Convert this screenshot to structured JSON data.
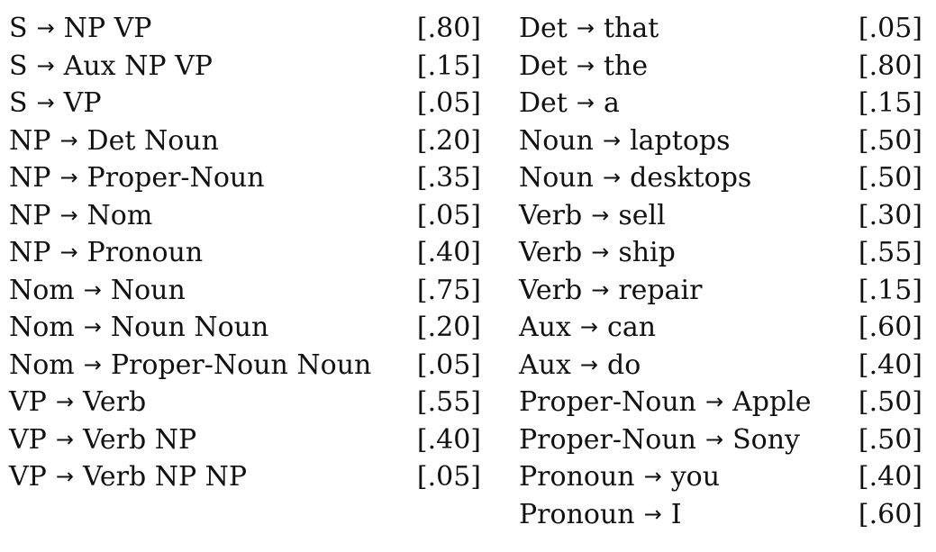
{
  "grammar": {
    "arrow_symbol": "→",
    "left_rules": [
      {
        "lhs": "S",
        "rhs": "NP VP",
        "prob": "[.80]"
      },
      {
        "lhs": "S",
        "rhs": "Aux NP VP",
        "prob": "[.15]"
      },
      {
        "lhs": "S",
        "rhs": "VP",
        "prob": "[.05]"
      },
      {
        "lhs": "NP",
        "rhs": "Det Noun",
        "prob": "[.20]"
      },
      {
        "lhs": "NP",
        "rhs": "Proper-Noun",
        "prob": "[.35]"
      },
      {
        "lhs": "NP",
        "rhs": "Nom",
        "prob": "[.05]"
      },
      {
        "lhs": "NP",
        "rhs": "Pronoun",
        "prob": "[.40]"
      },
      {
        "lhs": "Nom",
        "rhs": "Noun",
        "prob": "[.75]"
      },
      {
        "lhs": "Nom",
        "rhs": "Noun Noun",
        "prob": "[.20]"
      },
      {
        "lhs": "Nom",
        "rhs": "Proper-Noun Noun",
        "prob": "[.05]"
      },
      {
        "lhs": "VP",
        "rhs": "Verb",
        "prob": "[.55]"
      },
      {
        "lhs": "VP",
        "rhs": "Verb NP",
        "prob": "[.40]"
      },
      {
        "lhs": "VP",
        "rhs": "Verb NP NP",
        "prob": "[.05]"
      }
    ],
    "right_rules": [
      {
        "lhs": "Det",
        "rhs": "that",
        "prob": "[.05]"
      },
      {
        "lhs": "Det",
        "rhs": "the",
        "prob": "[.80]"
      },
      {
        "lhs": "Det",
        "rhs": "a",
        "prob": "[.15]"
      },
      {
        "lhs": "Noun",
        "rhs": "laptops",
        "prob": "[.50]"
      },
      {
        "lhs": "Noun",
        "rhs": "desktops",
        "prob": "[.50]"
      },
      {
        "lhs": "Verb",
        "rhs": "sell",
        "prob": "[.30]"
      },
      {
        "lhs": "Verb",
        "rhs": "ship",
        "prob": "[.55]"
      },
      {
        "lhs": "Verb",
        "rhs": "repair",
        "prob": "[.15]"
      },
      {
        "lhs": "Aux",
        "rhs": "can",
        "prob": "[.60]"
      },
      {
        "lhs": "Aux",
        "rhs": "do",
        "prob": "[.40]"
      },
      {
        "lhs": "Proper-Noun",
        "rhs": "Apple",
        "prob": "[.50]"
      },
      {
        "lhs": "Proper-Noun",
        "rhs": "Sony",
        "prob": "[.50]"
      },
      {
        "lhs": "Pronoun",
        "rhs": "you",
        "prob": "[.40]"
      },
      {
        "lhs": "Pronoun",
        "rhs": "I",
        "prob": "[.60]"
      }
    ]
  }
}
